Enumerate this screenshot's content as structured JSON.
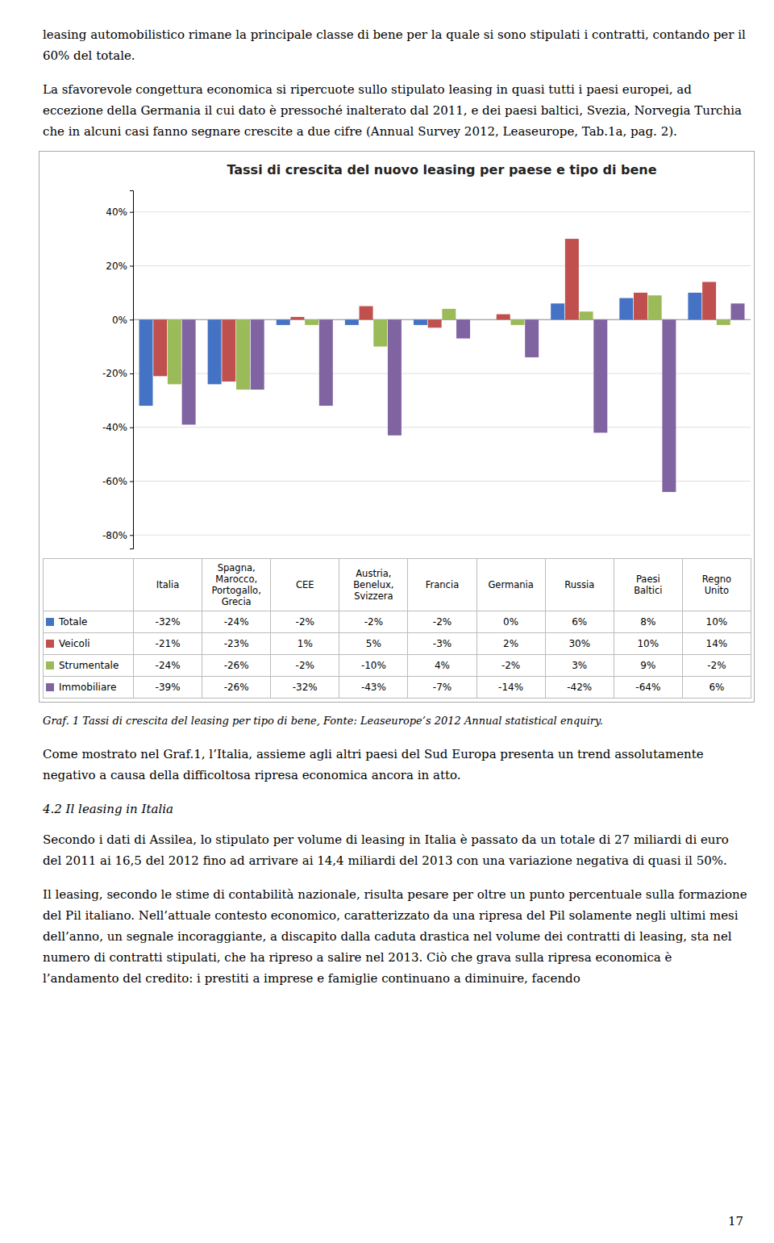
{
  "chart_data": {
    "type": "bar",
    "title": "Tassi di crescita del nuovo leasing per paese e tipo di bene",
    "categories": [
      "Italia",
      "Spagna,\nMarocco,\nPortogallo,\nGrecia",
      "CEE",
      "Austria,\nBenelux,\nSvizzera",
      "Francia",
      "Germania",
      "Russia",
      "Paesi\nBaltici",
      "Regno\nUnito"
    ],
    "series": [
      {
        "name": "Totale",
        "color": "#4472C4",
        "values": [
          -32,
          -24,
          -2,
          -2,
          -2,
          0,
          6,
          8,
          10
        ],
        "value_labels": [
          "-32%",
          "-24%",
          "-2%",
          "-2%",
          "-2%",
          "0%",
          "6%",
          "8%",
          "10%"
        ]
      },
      {
        "name": "Veicoli",
        "color": "#C0504D",
        "values": [
          -21,
          -23,
          1,
          5,
          -3,
          2,
          30,
          10,
          14
        ],
        "value_labels": [
          "-21%",
          "-23%",
          "1%",
          "5%",
          "-3%",
          "2%",
          "30%",
          "10%",
          "14%"
        ]
      },
      {
        "name": "Strumentale",
        "color": "#9BBB59",
        "values": [
          -24,
          -26,
          -2,
          -10,
          4,
          -2,
          3,
          9,
          -2
        ],
        "value_labels": [
          "-24%",
          "-26%",
          "-2%",
          "-10%",
          "4%",
          "-2%",
          "3%",
          "9%",
          "-2%"
        ]
      },
      {
        "name": "Immobiliare",
        "color": "#8064A2",
        "values": [
          -39,
          -26,
          -32,
          -43,
          -7,
          -14,
          -42,
          -64,
          6
        ],
        "value_labels": [
          "-39%",
          "-26%",
          "-32%",
          "-43%",
          "-7%",
          "-14%",
          "-42%",
          "-64%",
          "6%"
        ]
      }
    ],
    "ylim": [
      -85,
      48
    ],
    "yticks": [
      {
        "value": -80,
        "label": "-80%"
      },
      {
        "value": -60,
        "label": "-60%"
      },
      {
        "value": -40,
        "label": "-40%"
      },
      {
        "value": -20,
        "label": "-20%"
      },
      {
        "value": 0,
        "label": "0%"
      },
      {
        "value": 20,
        "label": "20%"
      },
      {
        "value": 40,
        "label": "40%"
      }
    ],
    "grid": true,
    "legend": "bottom",
    "annotations": [
      "leasing automobilistico rimane la principale classe di bene per la quale si sono stipulati i contratti, contando per il 60% del totale.",
      "La sfavorevole congettura economica si ripercuote sullo stipulato leasing in quasi tutti i paesi europei, ad eccezione della Germania il cui dato è pressoché inalterato dal 2011, e dei paesi baltici, Svezia, Norvegia Turchia che in alcuni casi fanno segnare crescite a due cifre (Annual Survey 2012, Leaseurope, Tab.1a, pag. 2).",
      "Graf. 1 Tassi di crescita del leasing per tipo di bene, Fonte: Leaseurope’s 2012 Annual statistical enquiry.",
      "Come mostrato nel Graf.1, l’Italia, assieme agli altri paesi del Sud Europa presenta un trend assolutamente negativo a causa della difficoltosa ripresa economica ancora in atto.",
      "4.2 Il leasing in Italia",
      "Secondo i dati di Assilea, lo stipulato per volume di leasing in Italia è passato da un totale di 27 miliardi di euro del 2011 ai 16,5 del 2012 fino ad arrivare ai 14,4 miliardi del 2013 con una variazione negativa di quasi il 50%.",
      "Il leasing, secondo le stime di contabilità nazionale, risulta pesare per oltre un punto percentuale sulla formazione del Pil italiano. Nell’attuale contesto economico, caratterizzato da una ripresa del Pil solamente negli ultimi mesi dell’anno, un segnale incoraggiante, a discapito dalla caduta drastica nel volume dei contratti di leasing, sta nel numero di contratti stipulati, che ha ripreso a salire nel 2013. Ciò che grava sulla ripresa economica è l’andamento del credito: i prestiti a imprese e famiglie continuano a diminuire, facendo",
      "17"
    ]
  }
}
